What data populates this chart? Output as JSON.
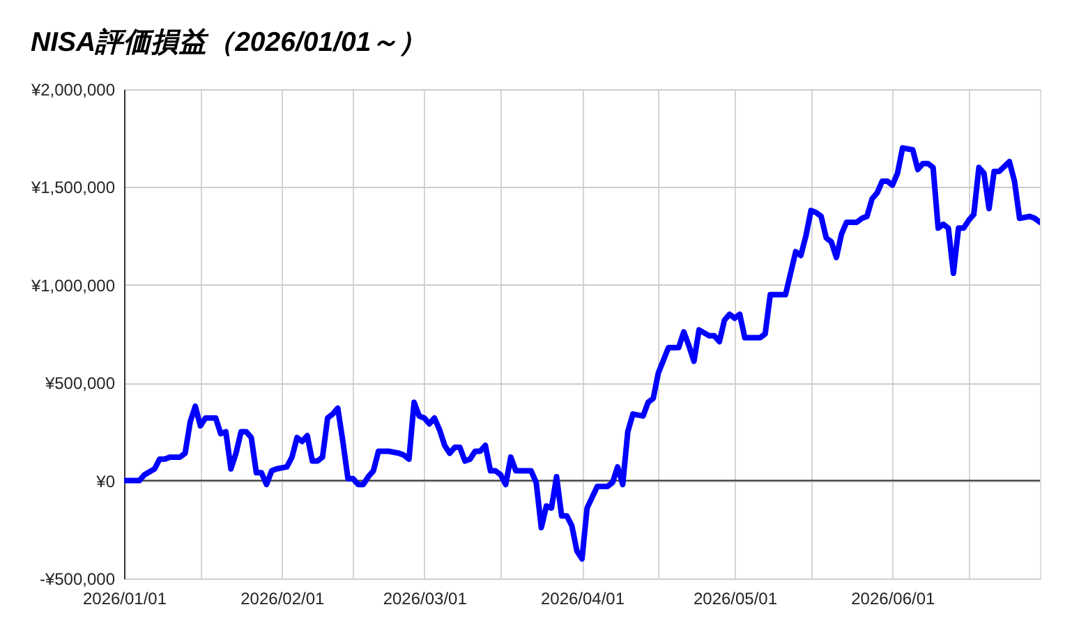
{
  "chart_data": {
    "type": "line",
    "title": "NISA評価損益（2026/01/01～）",
    "x": [
      "2026-01-01",
      "2026-01-04",
      "2026-01-05",
      "2026-01-07",
      "2026-01-08",
      "2026-01-09",
      "2026-01-10",
      "2026-01-12",
      "2026-01-13",
      "2026-01-14",
      "2026-01-15",
      "2026-01-16",
      "2026-01-17",
      "2026-01-19",
      "2026-01-20",
      "2026-01-21",
      "2026-01-22",
      "2026-01-23",
      "2026-01-24",
      "2026-01-25",
      "2026-01-26",
      "2026-01-27",
      "2026-01-28",
      "2026-01-29",
      "2026-01-30",
      "2026-01-31",
      "2026-02-02",
      "2026-02-03",
      "2026-02-04",
      "2026-02-05",
      "2026-02-06",
      "2026-02-07",
      "2026-02-08",
      "2026-02-09",
      "2026-02-10",
      "2026-02-11",
      "2026-02-12",
      "2026-02-13",
      "2026-02-14",
      "2026-02-15",
      "2026-02-16",
      "2026-02-17",
      "2026-02-18",
      "2026-02-19",
      "2026-02-20",
      "2026-02-22",
      "2026-02-24",
      "2026-02-25",
      "2026-02-26",
      "2026-02-27",
      "2026-02-28",
      "2026-03-01",
      "2026-03-02",
      "2026-03-03",
      "2026-03-04",
      "2026-03-05",
      "2026-03-06",
      "2026-03-07",
      "2026-03-08",
      "2026-03-09",
      "2026-03-10",
      "2026-03-11",
      "2026-03-12",
      "2026-03-13",
      "2026-03-14",
      "2026-03-15",
      "2026-03-16",
      "2026-03-17",
      "2026-03-18",
      "2026-03-19",
      "2026-03-22",
      "2026-03-23",
      "2026-03-24",
      "2026-03-25",
      "2026-03-26",
      "2026-03-27",
      "2026-03-28",
      "2026-03-29",
      "2026-03-30",
      "2026-03-31",
      "2026-04-01",
      "2026-04-02",
      "2026-04-04",
      "2026-04-06",
      "2026-04-07",
      "2026-04-08",
      "2026-04-09",
      "2026-04-10",
      "2026-04-11",
      "2026-04-13",
      "2026-04-14",
      "2026-04-15",
      "2026-04-16",
      "2026-04-18",
      "2026-04-20",
      "2026-04-21",
      "2026-04-22",
      "2026-04-23",
      "2026-04-24",
      "2026-04-26",
      "2026-04-27",
      "2026-04-28",
      "2026-04-29",
      "2026-04-30",
      "2026-05-01",
      "2026-05-02",
      "2026-05-03",
      "2026-05-06",
      "2026-05-07",
      "2026-05-08",
      "2026-05-11",
      "2026-05-12",
      "2026-05-13",
      "2026-05-14",
      "2026-05-15",
      "2026-05-16",
      "2026-05-17",
      "2026-05-18",
      "2026-05-19",
      "2026-05-20",
      "2026-05-21",
      "2026-05-22",
      "2026-05-23",
      "2026-05-25",
      "2026-05-26",
      "2026-05-27",
      "2026-05-28",
      "2026-05-29",
      "2026-05-30",
      "2026-05-31",
      "2026-06-01",
      "2026-06-02",
      "2026-06-03",
      "2026-06-05",
      "2026-06-06",
      "2026-06-07",
      "2026-06-08",
      "2026-06-09",
      "2026-06-10",
      "2026-06-11",
      "2026-06-12",
      "2026-06-13",
      "2026-06-14",
      "2026-06-15",
      "2026-06-16",
      "2026-06-17",
      "2026-06-18",
      "2026-06-19",
      "2026-06-20",
      "2026-06-21",
      "2026-06-22",
      "2026-06-24",
      "2026-06-25",
      "2026-06-26",
      "2026-06-28",
      "2026-06-29",
      "2026-06-30"
    ],
    "series": [
      {
        "color": "#0000ff",
        "values": [
          0,
          0,
          30000,
          60000,
          110000,
          110000,
          120000,
          120000,
          140000,
          300000,
          380000,
          280000,
          320000,
          320000,
          240000,
          250000,
          60000,
          140000,
          250000,
          250000,
          220000,
          40000,
          40000,
          -20000,
          50000,
          60000,
          70000,
          120000,
          220000,
          200000,
          230000,
          100000,
          100000,
          120000,
          320000,
          340000,
          370000,
          200000,
          10000,
          10000,
          -20000,
          -20000,
          20000,
          50000,
          150000,
          150000,
          140000,
          130000,
          110000,
          400000,
          330000,
          320000,
          290000,
          320000,
          260000,
          180000,
          140000,
          170000,
          170000,
          100000,
          110000,
          150000,
          150000,
          180000,
          50000,
          50000,
          30000,
          -20000,
          120000,
          50000,
          50000,
          -10000,
          -240000,
          -130000,
          -140000,
          20000,
          -180000,
          -180000,
          -230000,
          -360000,
          -400000,
          -140000,
          -30000,
          -30000,
          -10000,
          70000,
          -20000,
          250000,
          340000,
          330000,
          400000,
          420000,
          550000,
          680000,
          680000,
          760000,
          690000,
          610000,
          770000,
          740000,
          740000,
          710000,
          820000,
          850000,
          830000,
          850000,
          730000,
          730000,
          750000,
          950000,
          950000,
          1060000,
          1170000,
          1150000,
          1250000,
          1380000,
          1370000,
          1350000,
          1240000,
          1220000,
          1140000,
          1260000,
          1320000,
          1320000,
          1340000,
          1350000,
          1440000,
          1470000,
          1530000,
          1530000,
          1510000,
          1570000,
          1700000,
          1690000,
          1590000,
          1620000,
          1620000,
          1600000,
          1290000,
          1310000,
          1290000,
          1060000,
          1290000,
          1290000,
          1330000,
          1360000,
          1600000,
          1570000,
          1390000,
          1580000,
          1580000,
          1630000,
          1530000,
          1340000,
          1350000,
          1340000,
          1320000
        ]
      }
    ],
    "xlim": [
      "2026-01-01",
      "2026-06-30"
    ],
    "xticks": [
      {
        "value": "2026-01-01",
        "label": "2026/01/01"
      },
      {
        "value": "2026-01-16",
        "label": null
      },
      {
        "value": "2026-02-01",
        "label": "2026/02/01"
      },
      {
        "value": "2026-02-15",
        "label": null
      },
      {
        "value": "2026-03-01",
        "label": "2026/03/01"
      },
      {
        "value": "2026-03-16",
        "label": null
      },
      {
        "value": "2026-04-01",
        "label": "2026/04/01"
      },
      {
        "value": "2026-04-16",
        "label": null
      },
      {
        "value": "2026-05-01",
        "label": "2026/05/01"
      },
      {
        "value": "2026-05-16",
        "label": null
      },
      {
        "value": "2026-06-01",
        "label": "2026/06/01"
      },
      {
        "value": "2026-06-16",
        "label": null
      }
    ],
    "ylim": [
      -500000,
      2000000
    ],
    "yticks": [
      {
        "value": -500000,
        "label": "-¥500,000"
      },
      {
        "value": 0,
        "label": "¥0"
      },
      {
        "value": 500000,
        "label": "¥500,000"
      },
      {
        "value": 1000000,
        "label": "¥1,000,000"
      },
      {
        "value": 1500000,
        "label": "¥1,500,000"
      },
      {
        "value": 2000000,
        "label": "¥2,000,000"
      }
    ],
    "ref_lines": [
      {
        "axis": "y",
        "value": 0,
        "color": "#333333",
        "line_style": "solid"
      }
    ],
    "grid": true,
    "line_style": "solid"
  }
}
